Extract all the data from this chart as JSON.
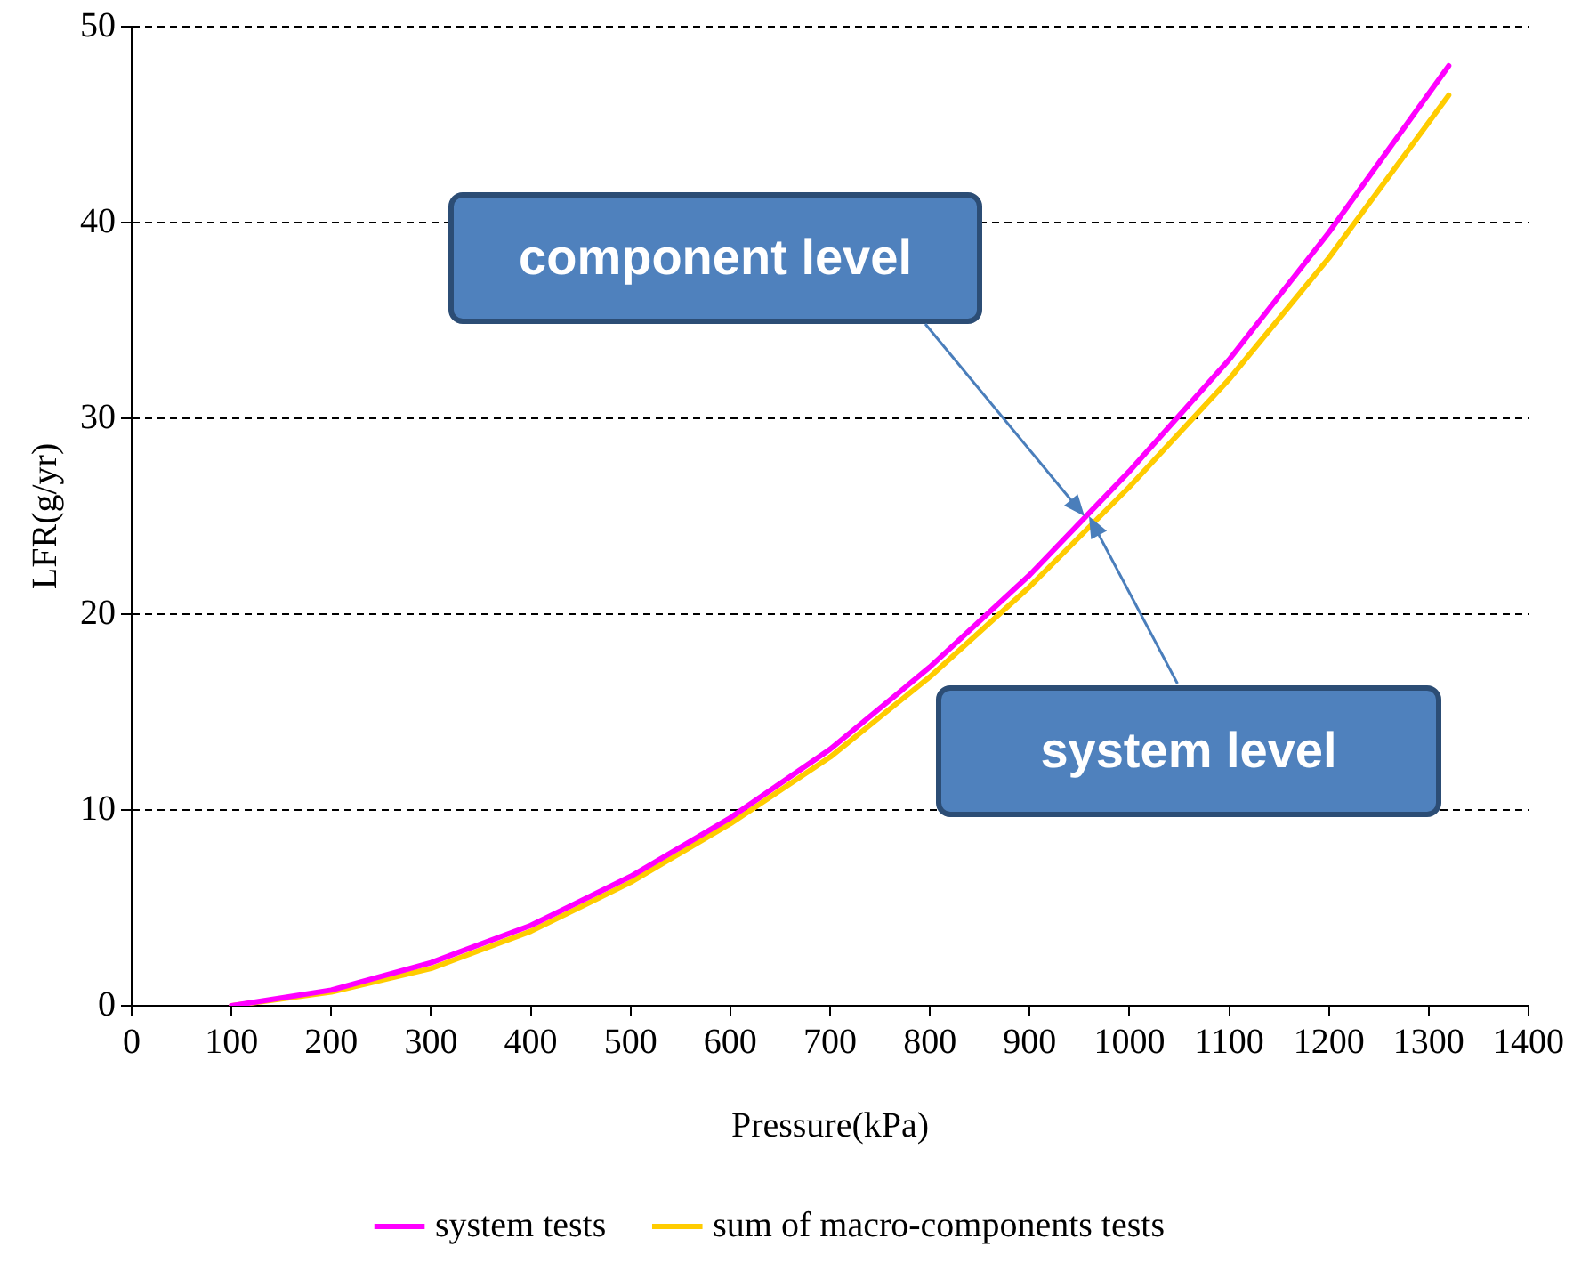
{
  "chart_data": {
    "type": "line",
    "xlabel": "Pressure(kPa)",
    "ylabel": "LFR(g/yr)",
    "xlim": [
      0,
      1400
    ],
    "xticks": [
      0,
      100,
      200,
      300,
      400,
      500,
      600,
      700,
      800,
      900,
      1000,
      1100,
      1200,
      1300,
      1400
    ],
    "ylim": [
      0,
      50
    ],
    "yticks": [
      0,
      10,
      20,
      30,
      40,
      50
    ],
    "grid": "y",
    "legend": "bottom",
    "marker": "none",
    "line_style": "solid",
    "series": [
      {
        "name": "system tests",
        "color": "#ff00ff",
        "x": [
          100,
          200,
          300,
          400,
          500,
          600,
          700,
          800,
          900,
          1000,
          1100,
          1200,
          1320
        ],
        "values": [
          0,
          0.8,
          2.2,
          4.1,
          6.6,
          9.6,
          13.1,
          17.3,
          22,
          27.3,
          33,
          39.5,
          48
        ]
      },
      {
        "name": "sum of macro-components tests",
        "color": "#ffcc00",
        "x": [
          100,
          200,
          300,
          400,
          500,
          600,
          700,
          800,
          900,
          1000,
          1100,
          1200,
          1320
        ],
        "values": [
          0,
          0.7,
          1.9,
          3.8,
          6.3,
          9.3,
          12.7,
          16.8,
          21.4,
          26.5,
          32,
          38.2,
          46.5
        ]
      }
    ],
    "annotations": [
      {
        "text": "component level",
        "x": 955,
        "y": 25
      },
      {
        "text": "system level",
        "x": 960,
        "y": 25
      }
    ]
  }
}
